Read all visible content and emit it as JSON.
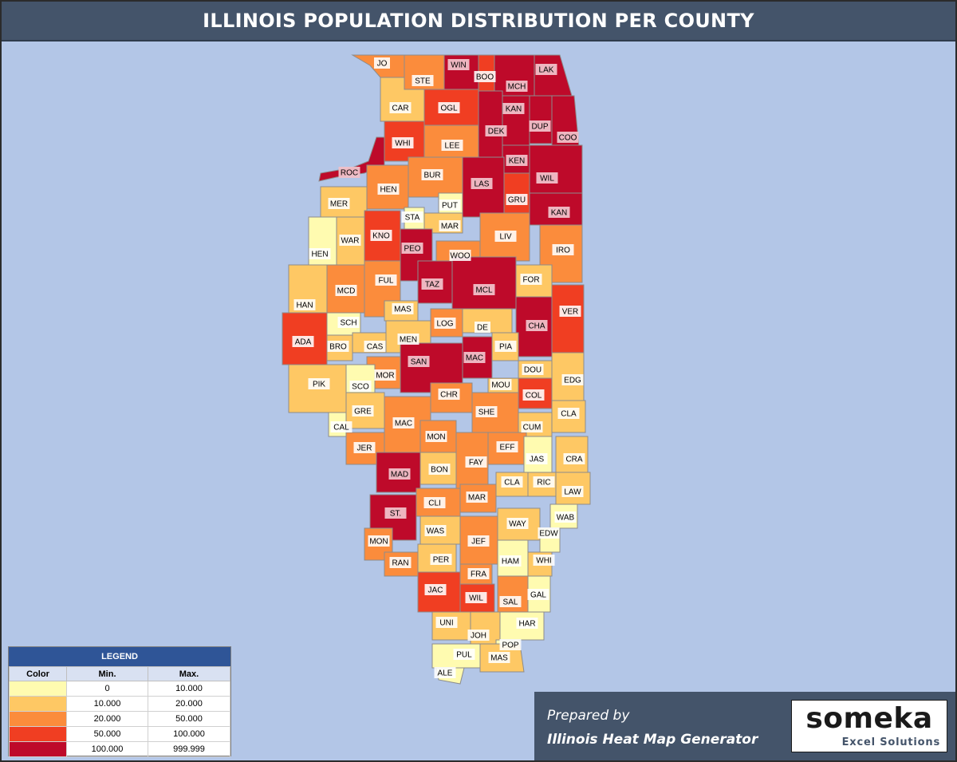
{
  "title": "ILLINOIS POPULATION DISTRIBUTION PER COUNTY",
  "colors": {
    "frame_bg": "#b3c6e7",
    "title_bg": "#44546a",
    "c0": "#fffbb0",
    "c1": "#fec864",
    "c2": "#fb8c3c",
    "c3": "#f03e22",
    "c4": "#be0a2a"
  },
  "legend": {
    "title": "LEGEND",
    "headers": [
      "Color",
      "Min.",
      "Max."
    ],
    "rows": [
      {
        "color": "#fffbb0",
        "min": "0",
        "max": "10.000"
      },
      {
        "color": "#fec864",
        "min": "10.000",
        "max": "20.000"
      },
      {
        "color": "#fb8c3c",
        "min": "20.000",
        "max": "50.000"
      },
      {
        "color": "#f03e22",
        "min": "50.000",
        "max": "100.000"
      },
      {
        "color": "#be0a2a",
        "min": "100.000",
        "max": "999.999"
      }
    ]
  },
  "counties": [
    {
      "abbr": "JO",
      "cls": 2
    },
    {
      "abbr": "STE",
      "cls": 2
    },
    {
      "abbr": "WIN",
      "cls": 4
    },
    {
      "abbr": "BOO",
      "cls": 3
    },
    {
      "abbr": "MCH",
      "cls": 4
    },
    {
      "abbr": "LAK",
      "cls": 4
    },
    {
      "abbr": "CAR",
      "cls": 1
    },
    {
      "abbr": "OGL",
      "cls": 3
    },
    {
      "abbr": "KAN",
      "cls": 4
    },
    {
      "abbr": "DEK",
      "cls": 4
    },
    {
      "abbr": "DUP",
      "cls": 4
    },
    {
      "abbr": "COO",
      "cls": 4
    },
    {
      "abbr": "WHI",
      "cls": 3
    },
    {
      "abbr": "LEE",
      "cls": 2
    },
    {
      "abbr": "KEN",
      "cls": 4
    },
    {
      "abbr": "ROC",
      "cls": 4
    },
    {
      "abbr": "BUR",
      "cls": 2
    },
    {
      "abbr": "LAS",
      "cls": 4
    },
    {
      "abbr": "WIL",
      "cls": 4
    },
    {
      "abbr": "HEN",
      "cls": 2
    },
    {
      "abbr": "GRU",
      "cls": 3
    },
    {
      "abbr": "MER",
      "cls": 1
    },
    {
      "abbr": "PUT",
      "cls": 0
    },
    {
      "abbr": "STA",
      "cls": 0
    },
    {
      "abbr": "KAN",
      "cls": 4
    },
    {
      "abbr": "MAR",
      "cls": 1
    },
    {
      "abbr": "KNO",
      "cls": 3
    },
    {
      "abbr": "WAR",
      "cls": 1
    },
    {
      "abbr": "LIV",
      "cls": 2
    },
    {
      "abbr": "HEN",
      "cls": 0
    },
    {
      "abbr": "PEO",
      "cls": 4
    },
    {
      "abbr": "IRO",
      "cls": 2
    },
    {
      "abbr": "WOO",
      "cls": 2
    },
    {
      "abbr": "FUL",
      "cls": 2
    },
    {
      "abbr": "MCD",
      "cls": 2
    },
    {
      "abbr": "TAZ",
      "cls": 4
    },
    {
      "abbr": "MCL",
      "cls": 4
    },
    {
      "abbr": "FOR",
      "cls": 1
    },
    {
      "abbr": "HAN",
      "cls": 1
    },
    {
      "abbr": "MAS",
      "cls": 1
    },
    {
      "abbr": "VER",
      "cls": 3
    },
    {
      "abbr": "CHA",
      "cls": 4
    },
    {
      "abbr": "SCH",
      "cls": 0
    },
    {
      "abbr": "LOG",
      "cls": 2
    },
    {
      "abbr": "DE",
      "cls": 1
    },
    {
      "abbr": "ADA",
      "cls": 3
    },
    {
      "abbr": "MEN",
      "cls": 1
    },
    {
      "abbr": "BRO",
      "cls": 1
    },
    {
      "abbr": "CAS",
      "cls": 1
    },
    {
      "abbr": "PIA",
      "cls": 1
    },
    {
      "abbr": "MAC",
      "cls": 4
    },
    {
      "abbr": "SAN",
      "cls": 4
    },
    {
      "abbr": "DOU",
      "cls": 1
    },
    {
      "abbr": "MOR",
      "cls": 2
    },
    {
      "abbr": "EDG",
      "cls": 1
    },
    {
      "abbr": "PIK",
      "cls": 1
    },
    {
      "abbr": "SCO",
      "cls": 0
    },
    {
      "abbr": "MOU",
      "cls": 1
    },
    {
      "abbr": "COL",
      "cls": 3
    },
    {
      "abbr": "CHR",
      "cls": 2
    },
    {
      "abbr": "GRE",
      "cls": 1
    },
    {
      "abbr": "SHE",
      "cls": 2
    },
    {
      "abbr": "CLA",
      "cls": 1
    },
    {
      "abbr": "CAL",
      "cls": 0
    },
    {
      "abbr": "MAC",
      "cls": 2
    },
    {
      "abbr": "CUM",
      "cls": 1
    },
    {
      "abbr": "JER",
      "cls": 2
    },
    {
      "abbr": "MON",
      "cls": 2
    },
    {
      "abbr": "EFF",
      "cls": 2
    },
    {
      "abbr": "JAS",
      "cls": 0
    },
    {
      "abbr": "CRA",
      "cls": 1
    },
    {
      "abbr": "FAY",
      "cls": 2
    },
    {
      "abbr": "MAD",
      "cls": 4
    },
    {
      "abbr": "BON",
      "cls": 1
    },
    {
      "abbr": "CLA",
      "cls": 1
    },
    {
      "abbr": "RIC",
      "cls": 1
    },
    {
      "abbr": "LAW",
      "cls": 1
    },
    {
      "abbr": "MAR",
      "cls": 2
    },
    {
      "abbr": "CLI",
      "cls": 2
    },
    {
      "abbr": "ST.",
      "cls": 4
    },
    {
      "abbr": "WAB",
      "cls": 0
    },
    {
      "abbr": "WAY",
      "cls": 1
    },
    {
      "abbr": "EDW",
      "cls": 0
    },
    {
      "abbr": "WAS",
      "cls": 1
    },
    {
      "abbr": "MON",
      "cls": 2
    },
    {
      "abbr": "JEF",
      "cls": 2
    },
    {
      "abbr": "HAM",
      "cls": 0
    },
    {
      "abbr": "WHI",
      "cls": 1
    },
    {
      "abbr": "PER",
      "cls": 1
    },
    {
      "abbr": "RAN",
      "cls": 2
    },
    {
      "abbr": "FRA",
      "cls": 2
    },
    {
      "abbr": "JAC",
      "cls": 3
    },
    {
      "abbr": "WIL",
      "cls": 3
    },
    {
      "abbr": "SAL",
      "cls": 2
    },
    {
      "abbr": "GAL",
      "cls": 0
    },
    {
      "abbr": "UNI",
      "cls": 1
    },
    {
      "abbr": "JOH",
      "cls": 1
    },
    {
      "abbr": "HAR",
      "cls": 0
    },
    {
      "abbr": "POP",
      "cls": 0
    },
    {
      "abbr": "PUL",
      "cls": 0
    },
    {
      "abbr": "MAS",
      "cls": 1
    },
    {
      "abbr": "ALE",
      "cls": 0
    }
  ],
  "credit": {
    "line1": "Prepared by",
    "line2": "Illinois Heat Map Generator"
  },
  "logo": {
    "brand": "someka",
    "sub": "Excel Solutions"
  }
}
